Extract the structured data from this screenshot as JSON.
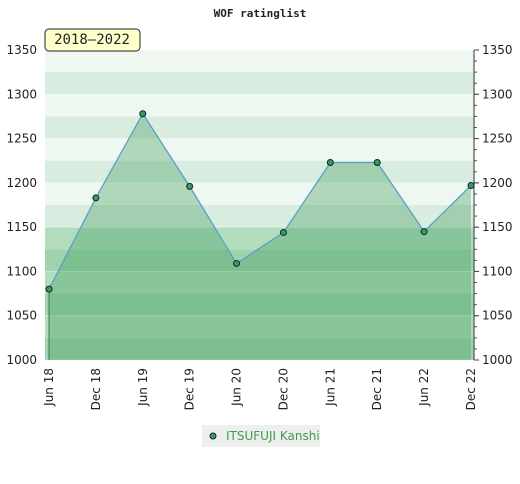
{
  "chart_data": {
    "type": "line",
    "title": "WOF ratinglist",
    "annotation": "2018–2022",
    "categories": [
      "Jun 18",
      "Dec 18",
      "Jun 19",
      "Dec 19",
      "Jun 20",
      "Dec 20",
      "Jun 21",
      "Dec 21",
      "Jun 22",
      "Dec 22"
    ],
    "series": [
      {
        "name": "ITSUFUJI Kanshi",
        "color": "#3c9a5a",
        "values": [
          1080,
          1183,
          1278,
          1196,
          1109,
          1144,
          1223,
          1223,
          1145,
          1197
        ]
      }
    ],
    "ylim": [
      1000,
      1350
    ],
    "yticks": [
      1000,
      1050,
      1100,
      1150,
      1200,
      1250,
      1300,
      1350
    ],
    "grid": true
  }
}
